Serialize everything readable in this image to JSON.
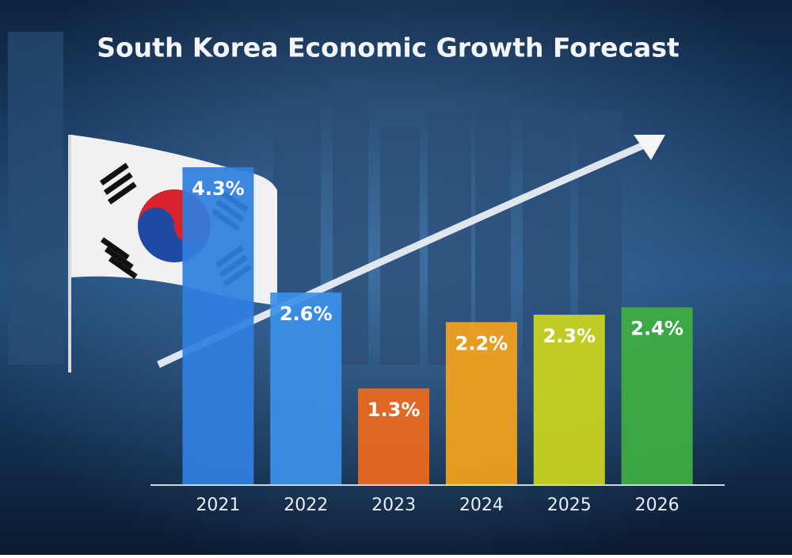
{
  "chart_data": {
    "type": "bar",
    "title": "South Korea Economic Growth Forecast",
    "categories": [
      "2021",
      "2022",
      "2023",
      "2024",
      "2025",
      "2026"
    ],
    "values": [
      4.3,
      2.6,
      1.3,
      2.2,
      2.3,
      2.4
    ],
    "value_labels": [
      "4.3%",
      "2.6%",
      "1.3%",
      "2.2%",
      "2.3%",
      "2.4%"
    ],
    "colors": [
      "#2f7fe0",
      "#3b90ea",
      "#ee6a1e",
      "#f5a21c",
      "#cbd61e",
      "#3fae42"
    ]
  }
}
